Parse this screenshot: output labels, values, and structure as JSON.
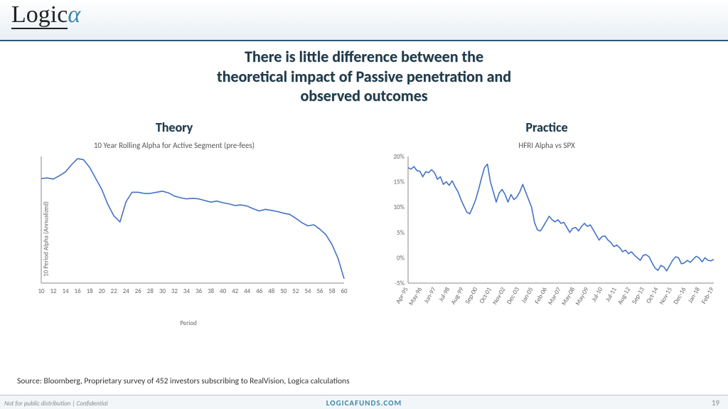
{
  "logo": {
    "main": "Logic",
    "alpha": "α"
  },
  "title_line1": "There is little difference between the",
  "title_line2": "theoretical impact of Passive penetration and",
  "title_line3": "observed outcomes",
  "left_col_title": "Theory",
  "right_col_title": "Practice",
  "source_text": "Source: Bloomberg, Proprietary survey of 452 investors subscribing to RealVision, Logica calculations",
  "footer": {
    "left": "Not for public distribution | Confidential",
    "center": "LOGICAFUNDS.COM",
    "page": "19"
  },
  "colors": {
    "series_line": "#4472c4",
    "title_text": "#1d3a4c",
    "accent": "#3e88a8",
    "axis": "#888888",
    "tick_label": "#666666"
  },
  "left_chart": {
    "type": "line",
    "subtitle": "10 Year Rolling Alpha for Active Segment (pre-fees)",
    "ylabel": "10 Period Alpha (Annualized)",
    "xlabel": "Period",
    "x_ticks": [
      10,
      12,
      14,
      16,
      18,
      20,
      22,
      24,
      26,
      28,
      30,
      32,
      34,
      36,
      38,
      40,
      42,
      44,
      46,
      48,
      50,
      52,
      54,
      56,
      58,
      60
    ],
    "y_range": [
      -6,
      17
    ],
    "data": [
      [
        10,
        13.0
      ],
      [
        11,
        13.1
      ],
      [
        12,
        12.9
      ],
      [
        13,
        13.5
      ],
      [
        14,
        14.2
      ],
      [
        15,
        15.5
      ],
      [
        16,
        16.6
      ],
      [
        17,
        16.4
      ],
      [
        18,
        15.0
      ],
      [
        19,
        13.0
      ],
      [
        20,
        11.0
      ],
      [
        21,
        8.3
      ],
      [
        22,
        6.2
      ],
      [
        23,
        5.1
      ],
      [
        24,
        8.8
      ],
      [
        25,
        10.5
      ],
      [
        26,
        10.5
      ],
      [
        27,
        10.3
      ],
      [
        28,
        10.3
      ],
      [
        29,
        10.5
      ],
      [
        30,
        10.7
      ],
      [
        31,
        10.4
      ],
      [
        32,
        9.8
      ],
      [
        33,
        9.5
      ],
      [
        34,
        9.3
      ],
      [
        35,
        9.4
      ],
      [
        36,
        9.3
      ],
      [
        37,
        9.0
      ],
      [
        38,
        8.7
      ],
      [
        39,
        8.9
      ],
      [
        40,
        8.6
      ],
      [
        41,
        8.4
      ],
      [
        42,
        8.1
      ],
      [
        43,
        8.2
      ],
      [
        44,
        8.0
      ],
      [
        45,
        7.5
      ],
      [
        46,
        7.1
      ],
      [
        47,
        7.4
      ],
      [
        48,
        7.2
      ],
      [
        49,
        7.0
      ],
      [
        50,
        6.7
      ],
      [
        51,
        6.5
      ],
      [
        52,
        5.8
      ],
      [
        53,
        5.0
      ],
      [
        54,
        4.4
      ],
      [
        55,
        4.6
      ],
      [
        56,
        3.8
      ],
      [
        57,
        2.8
      ],
      [
        58,
        1.0
      ],
      [
        59,
        -1.5
      ],
      [
        60,
        -5.2
      ]
    ]
  },
  "right_chart": {
    "type": "line",
    "subtitle": "HFRI Alpha vs SPX",
    "x_category_labels": [
      "Apr-95",
      "May-96",
      "Jun-97",
      "Jul-98",
      "Aug-99",
      "Sep-00",
      "Oct-01",
      "Nov-02",
      "Dec-03",
      "Jan-05",
      "Feb-06",
      "Mar-07",
      "May-08",
      "May-09",
      "Jul-10",
      "Jul-11",
      "Aug-12",
      "Sep-13",
      "Oct-14",
      "Nov-15",
      "Dec-16",
      "Jan-18",
      "Feb-19"
    ],
    "y_ticks": [
      -5,
      0,
      5,
      10,
      15,
      20
    ],
    "y_range": [
      -5,
      20
    ],
    "data": [
      17.8,
      17.5,
      18.0,
      17.2,
      17.1,
      16.0,
      17.0,
      16.8,
      17.4,
      16.8,
      15.5,
      16.0,
      14.5,
      15.0,
      14.3,
      15.2,
      14.0,
      13.0,
      11.5,
      10.2,
      9.0,
      8.7,
      10.0,
      11.5,
      13.5,
      15.8,
      17.8,
      18.5,
      15.0,
      13.0,
      11.0,
      12.8,
      13.5,
      12.5,
      11.0,
      12.5,
      11.5,
      12.0,
      13.0,
      14.5,
      13.0,
      11.5,
      10.0,
      7.0,
      5.5,
      5.3,
      6.2,
      7.2,
      8.2,
      7.5,
      7.1,
      7.5,
      6.8,
      7.0,
      6.0,
      5.0,
      5.8,
      6.0,
      5.3,
      6.2,
      6.8,
      6.2,
      6.5,
      5.5,
      4.5,
      3.5,
      4.2,
      4.3,
      3.5,
      3.0,
      2.2,
      2.5,
      2.0,
      1.2,
      1.5,
      0.8,
      1.2,
      0.5,
      0.0,
      -0.5,
      0.5,
      0.6,
      0.2,
      -1.0,
      -2.0,
      -2.5,
      -1.5,
      -1.8,
      -2.6,
      -1.5,
      -0.5,
      0.2,
      0.0,
      -1.2,
      -1.0,
      -0.5,
      -0.9,
      -0.3,
      0.3,
      0.0,
      -0.8,
      0.0,
      -0.5,
      -0.6,
      -0.3
    ]
  }
}
